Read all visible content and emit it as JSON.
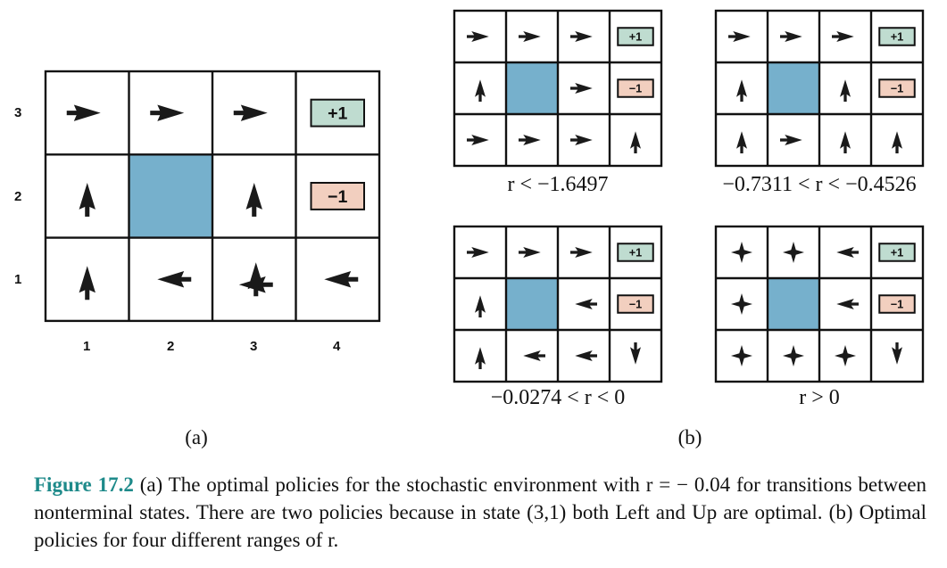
{
  "figure_a": {
    "row_labels": [
      "3",
      "2",
      "1"
    ],
    "col_labels": [
      "1",
      "2",
      "3",
      "4"
    ],
    "label": "(a)",
    "cells": [
      [
        "right",
        "right",
        "right",
        "plus"
      ],
      [
        "up",
        "wall",
        "up",
        "minus"
      ],
      [
        "up",
        "left",
        "left-up",
        "left"
      ]
    ]
  },
  "figure_b": {
    "label": "(b)",
    "grids": [
      {
        "range": "r < −1.6497",
        "cells": [
          [
            "right",
            "right",
            "right",
            "plus"
          ],
          [
            "up",
            "wall",
            "right",
            "minus"
          ],
          [
            "right",
            "right",
            "right",
            "up"
          ]
        ]
      },
      {
        "range": "−0.7311 < r < −0.4526",
        "cells": [
          [
            "right",
            "right",
            "right",
            "plus"
          ],
          [
            "up",
            "wall",
            "up",
            "minus"
          ],
          [
            "up",
            "right",
            "up",
            "up"
          ]
        ]
      },
      {
        "range": "−0.0274 < r < 0",
        "cells": [
          [
            "right",
            "right",
            "right",
            "plus"
          ],
          [
            "up",
            "wall",
            "left",
            "minus"
          ],
          [
            "up",
            "left",
            "left",
            "down"
          ]
        ]
      },
      {
        "range": "r > 0",
        "cells": [
          [
            "all",
            "all",
            "left",
            "plus"
          ],
          [
            "all",
            "wall",
            "left",
            "minus"
          ],
          [
            "all",
            "all",
            "all",
            "down"
          ]
        ]
      }
    ]
  },
  "badges": {
    "plus": "+1",
    "minus": "−1"
  },
  "colors": {
    "wall": "#76b0cc",
    "plus_bg": "#bfdcd0",
    "minus_bg": "#f2cfbf",
    "arrow": "#1a1a1a",
    "caption_accent": "#1e8a8a"
  },
  "caption": {
    "figure_number": "Figure 17.2",
    "text": " (a) The optimal policies for the stochastic environment with r = − 0.04 for transitions between nonterminal states. There are two policies because in state (3,1) both Left and Up are optimal. (b) Optimal policies for four different ranges of r."
  }
}
